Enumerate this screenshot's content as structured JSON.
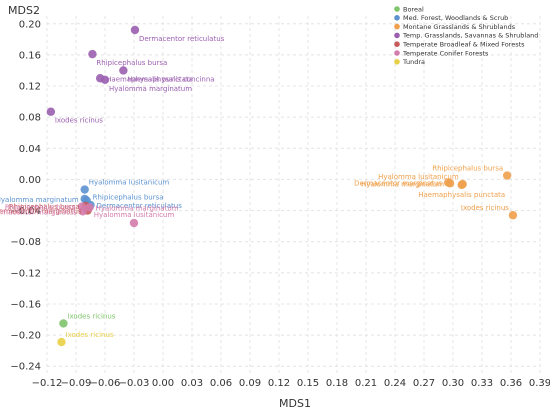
{
  "chart_data": {
    "type": "scatter",
    "xlabel": "MDS1",
    "ylabel": "MDS2",
    "xlim": [
      -0.12,
      0.39
    ],
    "ylim": [
      -0.25,
      0.21
    ],
    "xticks": [
      -0.12,
      -0.09,
      -0.06,
      -0.03,
      0.0,
      0.03,
      0.06,
      0.09,
      0.12,
      0.15,
      0.18,
      0.21,
      0.24,
      0.27,
      0.3,
      0.33,
      0.36,
      0.39
    ],
    "xtick_labels": [
      "−0.12",
      "−0.09",
      "−0.06",
      "−0.03",
      "0.00",
      "0.03",
      "0.06",
      "0.09",
      "0.12",
      "0.15",
      "0.18",
      "0.21",
      "0.24",
      "0.27",
      "0.30",
      "0.33",
      "0.36",
      "0.39"
    ],
    "yticks": [
      0.2,
      0.16,
      0.12,
      0.08,
      0.04,
      0.0,
      -0.04,
      -0.08,
      -0.12,
      -0.16,
      -0.2,
      -0.24
    ],
    "ytick_labels": [
      "0.20",
      "0.16",
      "0.12",
      "0.08",
      "0.04",
      "0.00",
      "−0.04",
      "−0.08",
      "−0.12",
      "−0.16",
      "−0.20",
      "−0.24"
    ],
    "grid": true,
    "legend_position": "top-right",
    "series": [
      {
        "name": "Boreal",
        "color": "#7fc46a",
        "points": [
          {
            "x": -0.103,
            "y": -0.185,
            "label": "Ixodes ricinus",
            "label_pos": "above-right"
          }
        ]
      },
      {
        "name": "Med. Forest, Woodlands & Scrub",
        "color": "#5b92cf",
        "points": [
          {
            "x": -0.081,
            "y": -0.013,
            "label": "Hyalomma lusitanicum",
            "label_pos": "above-right"
          },
          {
            "x": -0.081,
            "y": -0.025,
            "label": "Hyalomma marginatum",
            "label_pos": "left"
          },
          {
            "x": -0.079,
            "y": -0.027,
            "label": "Rhipicephalus bursa",
            "label_pos": "right-up"
          },
          {
            "x": -0.075,
            "y": -0.033,
            "label": "Dermacentor reticulatus",
            "label_pos": "right"
          }
        ]
      },
      {
        "name": "Montane Grasslands & Shrublands",
        "color": "#f0a04b",
        "points": [
          {
            "x": 0.356,
            "y": 0.005,
            "label": "Rhipicephalus bursa",
            "label_pos": "above-left"
          },
          {
            "x": 0.31,
            "y": -0.006,
            "label": "Hyalomma lusitanicum",
            "label_pos": "above-left"
          },
          {
            "x": 0.295,
            "y": -0.004,
            "label": "Dermacentor marginatus",
            "label_pos": "left"
          },
          {
            "x": 0.297,
            "y": -0.005,
            "label": "Hyalomma marginatum",
            "label_pos": "left"
          },
          {
            "x": 0.309,
            "y": -0.007,
            "label": "Haemaphysalis punctata",
            "label_pos": "below"
          },
          {
            "x": 0.362,
            "y": -0.046,
            "label": "Ixodes ricinus",
            "label_pos": "above-left"
          }
        ]
      },
      {
        "name": "Temp. Grasslands, Savannas & Shrubland",
        "color": "#9b5fb0",
        "points": [
          {
            "x": -0.029,
            "y": 0.192,
            "label": "Dermacentor reticulatus",
            "label_pos": "below-right"
          },
          {
            "x": -0.073,
            "y": 0.161,
            "label": "Rhipicephalus bursa",
            "label_pos": "below-right"
          },
          {
            "x": -0.041,
            "y": 0.14,
            "label": "Haemaphysalis concinna",
            "label_pos": "below-right"
          },
          {
            "x": -0.065,
            "y": 0.13,
            "label": "Haemaphysalis punctata",
            "label_pos": "right"
          },
          {
            "x": -0.116,
            "y": 0.087,
            "label": "Ixodes ricinus",
            "label_pos": "below-right"
          },
          {
            "x": -0.06,
            "y": 0.128,
            "label": "Hyalomma marginatum",
            "label_pos": "below-right"
          }
        ]
      },
      {
        "name": "Temperate Broadleaf & Mixed Forests",
        "color": "#c75a5a",
        "points": [
          {
            "x": -0.08,
            "y": -0.034,
            "label": "Rhipicephalus bursa",
            "label_pos": "left"
          },
          {
            "x": -0.078,
            "y": -0.04,
            "label": "Dermacentor marginatus",
            "label_pos": "left"
          }
        ]
      },
      {
        "name": "Temperate Conifer Forests",
        "color": "#d47cab",
        "points": [
          {
            "x": -0.084,
            "y": -0.035,
            "label": "Rhipicephalus bursa",
            "label_pos": "left"
          },
          {
            "x": -0.083,
            "y": -0.041,
            "label": "Dermacentor marginatus",
            "label_pos": "left"
          },
          {
            "x": -0.076,
            "y": -0.036,
            "label": "Hyalomma marginatum",
            "label_pos": "right"
          },
          {
            "x": -0.03,
            "y": -0.056,
            "label": "Hyalomma lusitanicum",
            "label_pos": "above"
          }
        ]
      },
      {
        "name": "Tundra",
        "color": "#e8d046",
        "points": [
          {
            "x": -0.105,
            "y": -0.209,
            "label": "Ixodes ricinus",
            "label_pos": "above-right"
          }
        ]
      }
    ]
  }
}
